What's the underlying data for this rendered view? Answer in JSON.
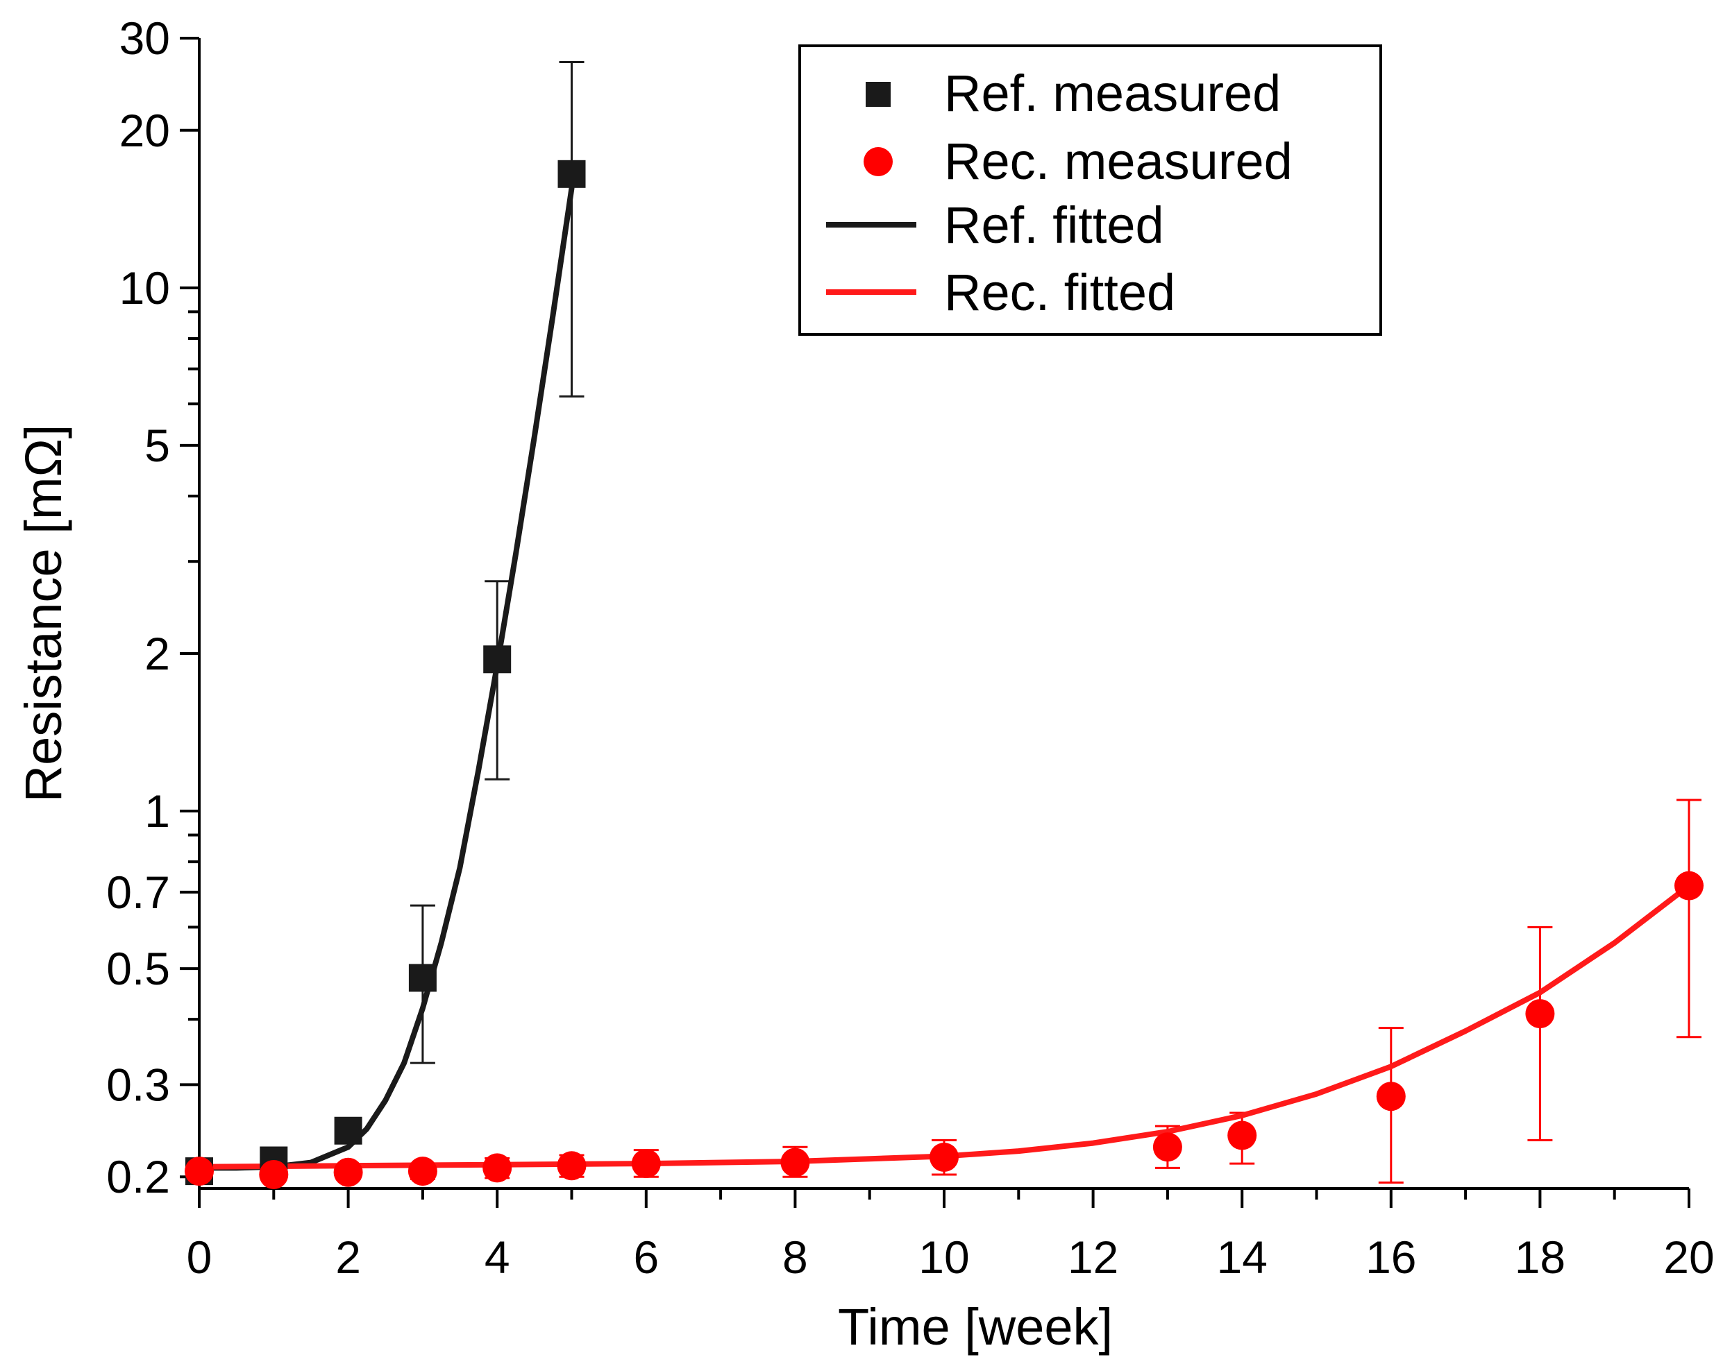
{
  "chart_data": {
    "type": "scatter",
    "title": "",
    "xlabel": "Time [week]",
    "ylabel": "Resistance [mΩ]",
    "xlim": [
      0,
      20
    ],
    "ylim": [
      0.19,
      30
    ],
    "yscale": "log",
    "xticks": [
      0,
      2,
      4,
      6,
      8,
      10,
      12,
      14,
      16,
      18,
      20
    ],
    "xtick_labels": [
      "0",
      "2",
      "4",
      "6",
      "8",
      "10",
      "12",
      "14",
      "16",
      "18",
      "20"
    ],
    "yticks": [
      0.2,
      0.3,
      0.5,
      0.7,
      1,
      2,
      5,
      10,
      20,
      30
    ],
    "ytick_labels": [
      "0.2",
      "0.3",
      "0.5",
      "0.7",
      "1",
      "2",
      "5",
      "10",
      "20",
      "30"
    ],
    "legend_position": "top-right",
    "legend": {
      "ref_measured": "Ref. measured",
      "rec_measured": "Rec. measured",
      "ref_fitted": "Ref. fitted",
      "rec_fitted": "Rec. fitted"
    },
    "series": [
      {
        "name": "Ref. measured",
        "kind": "marker-square",
        "color": "#1a1a1a",
        "x": [
          0,
          1,
          2,
          3,
          4,
          5
        ],
        "y": [
          0.205,
          0.215,
          0.245,
          0.48,
          1.95,
          16.5
        ],
        "err_low": [
          0,
          0,
          0,
          0.33,
          1.15,
          6.2
        ],
        "err_high": [
          0,
          0,
          0,
          0.66,
          2.75,
          27
        ]
      },
      {
        "name": "Rec. measured",
        "kind": "marker-circle",
        "color": "#ff0000",
        "x": [
          0,
          1,
          2,
          3,
          4,
          5,
          6,
          8,
          10,
          13,
          14,
          16,
          18,
          20
        ],
        "y": [
          0.205,
          0.202,
          0.204,
          0.205,
          0.208,
          0.21,
          0.212,
          0.213,
          0.218,
          0.228,
          0.24,
          0.285,
          0.41,
          0.72
        ],
        "err_low": [
          0.197,
          0.197,
          0.198,
          0.198,
          0.199,
          0.2,
          0.2,
          0.2,
          0.202,
          0.208,
          0.212,
          0.195,
          0.235,
          0.37
        ],
        "err_high": [
          0.212,
          0.207,
          0.21,
          0.212,
          0.217,
          0.22,
          0.225,
          0.228,
          0.235,
          0.25,
          0.265,
          0.385,
          0.6,
          1.05
        ]
      },
      {
        "name": "Ref. fitted",
        "kind": "line",
        "color": "#1a1a1a",
        "x": [
          0,
          0.5,
          1,
          1.5,
          2,
          2.25,
          2.5,
          2.75,
          3,
          3.25,
          3.5,
          3.75,
          4,
          4.25,
          4.5,
          4.75,
          5
        ],
        "y": [
          0.208,
          0.208,
          0.209,
          0.213,
          0.228,
          0.247,
          0.28,
          0.33,
          0.42,
          0.56,
          0.78,
          1.2,
          1.9,
          3.1,
          5.2,
          8.9,
          15.5
        ]
      },
      {
        "name": "Rec. fitted",
        "kind": "line",
        "color": "#ff1a1a",
        "x": [
          0,
          2,
          4,
          6,
          8,
          10,
          11,
          12,
          13,
          14,
          15,
          16,
          17,
          18,
          19,
          20
        ],
        "y": [
          0.209,
          0.21,
          0.211,
          0.212,
          0.214,
          0.219,
          0.224,
          0.232,
          0.244,
          0.262,
          0.288,
          0.325,
          0.38,
          0.45,
          0.56,
          0.72
        ]
      }
    ]
  }
}
